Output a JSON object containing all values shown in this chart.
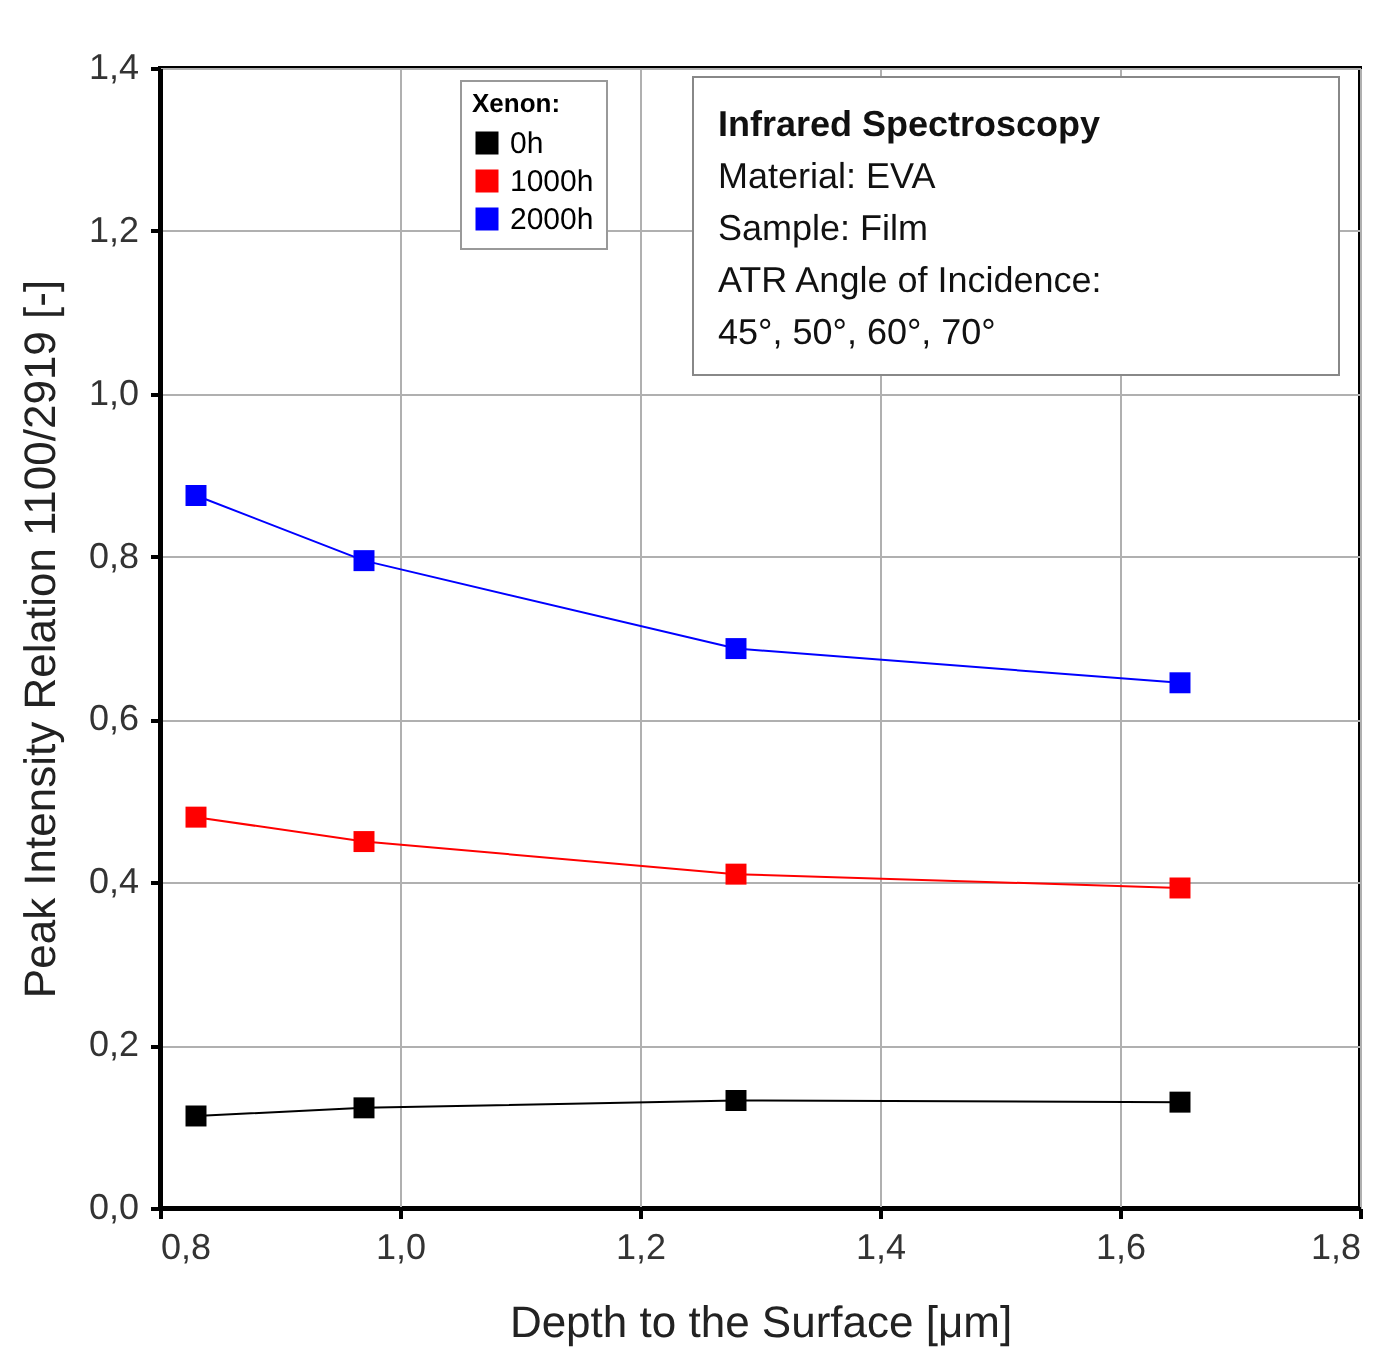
{
  "chart_data": {
    "type": "line",
    "xlabel": "Depth to the Surface [μm]",
    "ylabel": "Peak Intensity Relation 1100/2919 [-]",
    "legend_title": "Xenon:",
    "legend": "top left",
    "grid": true,
    "marker": "square",
    "line_style": "solid",
    "x": [
      0.83,
      0.97,
      1.28,
      1.65
    ],
    "series": [
      {
        "name": "0h",
        "color": "#000000",
        "values": [
          0.113,
          0.123,
          0.132,
          0.13
        ]
      },
      {
        "name": "1000h",
        "color": "#ff0000",
        "values": [
          0.48,
          0.45,
          0.41,
          0.393
        ]
      },
      {
        "name": "2000h",
        "color": "#0000ff",
        "values": [
          0.875,
          0.795,
          0.687,
          0.645
        ]
      }
    ],
    "xlim": [
      0.8,
      1.8
    ],
    "xticks": [
      {
        "value": 0.8,
        "label": "0,8"
      },
      {
        "value": 1.0,
        "label": "1,0"
      },
      {
        "value": 1.2,
        "label": "1,2"
      },
      {
        "value": 1.4,
        "label": "1,4"
      },
      {
        "value": 1.6,
        "label": "1,6"
      },
      {
        "value": 1.8,
        "label": "1,8"
      }
    ],
    "ylim": [
      0,
      1.4
    ],
    "yticks": [
      {
        "value": 0,
        "label": "0,0"
      },
      {
        "value": 0.2,
        "label": "0,2"
      },
      {
        "value": 0.4,
        "label": "0,4"
      },
      {
        "value": 0.6,
        "label": "0,6"
      },
      {
        "value": 0.8,
        "label": "0,8"
      },
      {
        "value": 1.0,
        "label": "1,0"
      },
      {
        "value": 1.2,
        "label": "1,2"
      },
      {
        "value": 1.4,
        "label": "1,4"
      }
    ],
    "annotations": [
      "Infrared Spectroscopy",
      "Material: EVA",
      "Sample: Film",
      "ATR Angle of Incidence:",
      "45°, 50°, 60°, 70°"
    ]
  }
}
